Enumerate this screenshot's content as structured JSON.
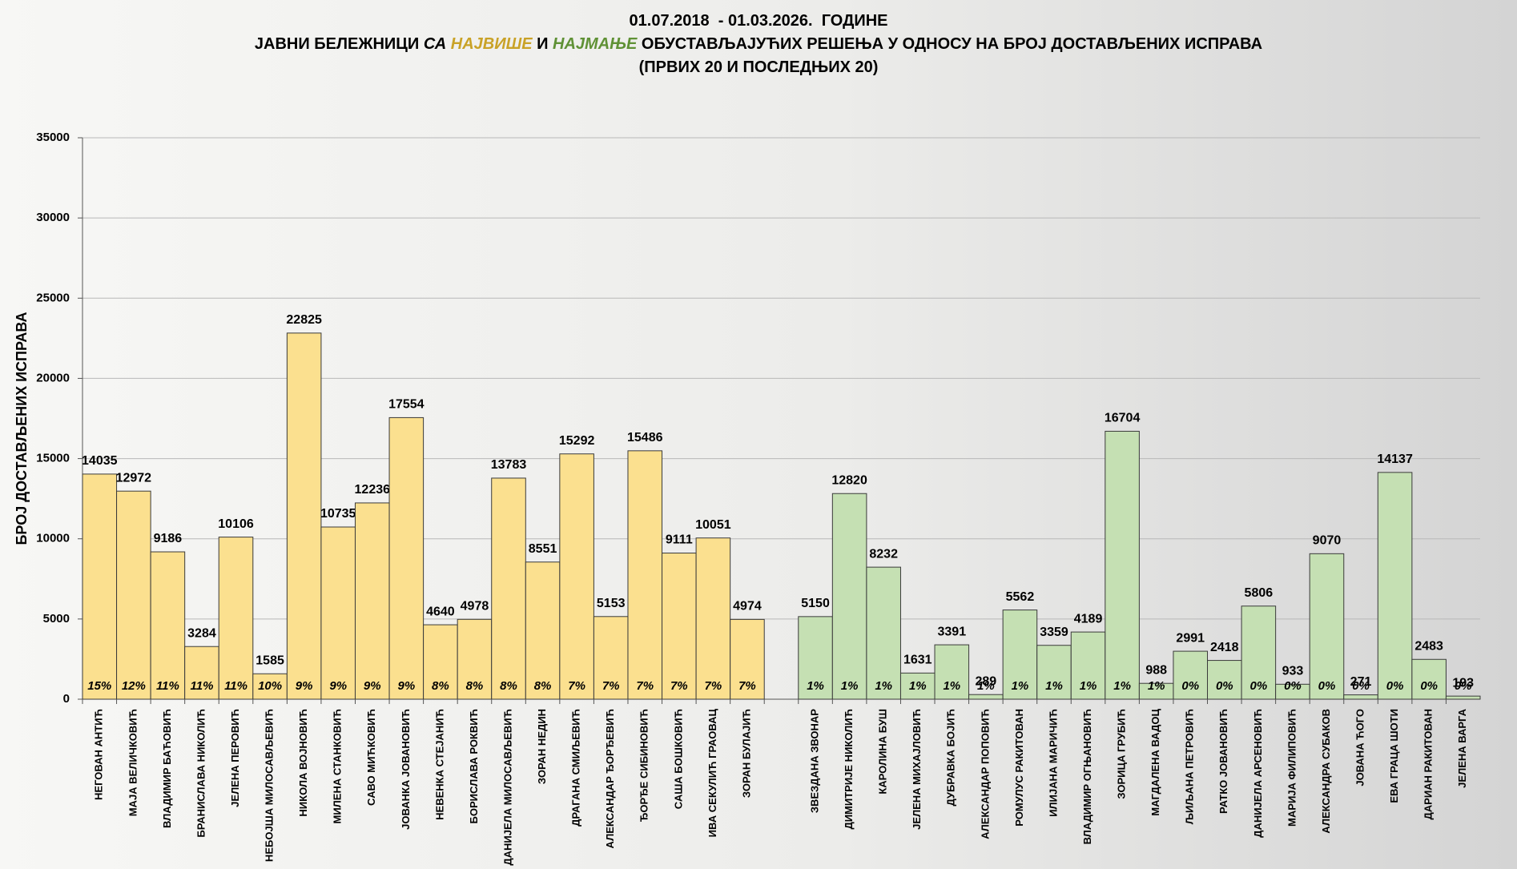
{
  "chart_data": {
    "type": "bar",
    "title_lines": [
      [
        {
          "text": "01.07.2018  - 01.03.2026.  ГОДИНЕ"
        }
      ],
      [
        {
          "text": "ЈАВНИ БЕЛЕЖНИЦИ "
        },
        {
          "text": "СА ",
          "italic": true
        },
        {
          "text": "НАЈВИШЕ",
          "italic": true,
          "color": "#c9a227"
        },
        {
          "text": " И "
        },
        {
          "text": "НАЈМАЊЕ",
          "italic": true,
          "color": "#5f9135"
        },
        {
          "text": " ОБУСТАВЉАЈУЋИХ РЕШЕЊА У ОДНОСУ НА БРОЈ ДОСТАВЉЕНИХ ИСПРАВА"
        }
      ],
      [
        {
          "text": "(ПРВИХ 20 И ПОСЛЕДЊИХ 20)"
        }
      ]
    ],
    "y_label": "БРОЈ ДОСТАВЉЕНИХ ИСПРАВА",
    "categories": [
      "НЕГОВАН АНТИЋ",
      "МАЈА ВЕЛИЧКОВИЋ",
      "ВЛАДИМИР БАЋОВИЋ",
      "БРАНИСЛАВА  НИКОЛИЋ",
      "ЈЕЛЕНА ПЕРОВИЋ",
      "НЕБОЈША МИЛОСАВЉЕВИЋ",
      "НИКОЛА ВОЈНОВИЋ",
      "МИЛЕНА СТАНКОВИЋ",
      "САВО МИЋКОВИЋ",
      "ЈОВАНКА ЈОВАНОВИЋ",
      "НЕВЕНКА СТЕЈАНИЋ",
      "БОРИСЛАВА  РОКВИЋ",
      "ДАНИЈЕЛА  МИЛОСАВЉЕВИЋ",
      "ЗОРАН НЕДИН",
      "ДРАГАНА СМИЉЕВИЋ",
      "АЛЕКСАНДАР  ЂОРЂЕВИЋ",
      "ЂОРЂЕ СИБИНОВИЋ",
      "САША БОШКОВИЋ",
      "ИВА СЕКУЛИЋ  ГРАОВАЦ",
      "ЗОРАН БУЛАЈИЋ",
      null,
      "ЗВЕЗДАНА ЗВОНАР",
      "ДИМИТРИЈЕ НИКОЛИЋ",
      "КАРОЛИНА  БУШ",
      "ЈЕЛЕНА МИХАЈЛОВИЋ",
      "ДУБРАВКА  БОЈИЋ",
      "АЛЕКСАНДАР  ПОПОВИЋ",
      "РОМУЛУС РАКИТОВАН",
      "ИЛИЈАНА  МАРИЧИЋ",
      "ВЛАДИМИР  ОГЊАНОВИЋ",
      "ЗОРИЦА  ГРУБИЋ",
      "МАГДАЛЕНА  ВАДОЦ",
      "ЉИЉАНА  ПЕТРОВИЋ",
      "РАТКО  ЈОВАНОВИЋ",
      "ДАНИЈЕЛА  АРСЕНОВИЋ",
      "МАРИЈА  ФИЛИПОВИЋ",
      "АЛЕКСАНДРА  СУБАКОВ",
      "ЈОВАНА  ЋОГО",
      "ЕВА ГРАЦА ШОТИ",
      "ДАРИАН  РАКИТОВАН",
      "ЈЕЛЕНА  ВАРГА"
    ],
    "series": [
      {
        "color": "#fbe08f",
        "values": [
          14035,
          12972,
          9186,
          3284,
          10106,
          1585,
          22825,
          10735,
          12236,
          17554,
          4640,
          4978,
          13783,
          8551,
          15292,
          5153,
          15486,
          9111,
          10051,
          4974,
          null,
          null,
          null,
          null,
          null,
          null,
          null,
          null,
          null,
          null,
          null,
          null,
          null,
          null,
          null,
          null,
          null,
          null,
          null,
          null,
          null
        ]
      },
      {
        "color": "#c5e0b3",
        "values": [
          null,
          null,
          null,
          null,
          null,
          null,
          null,
          null,
          null,
          null,
          null,
          null,
          null,
          null,
          null,
          null,
          null,
          null,
          null,
          null,
          null,
          5150,
          12820,
          8232,
          1631,
          3391,
          289,
          5562,
          3359,
          4189,
          16704,
          988,
          2991,
          2418,
          5806,
          933,
          9070,
          271,
          14137,
          2483,
          193
        ]
      }
    ],
    "share_labels": [
      "15%",
      "12%",
      "11%",
      "11%",
      "11%",
      "10%",
      "9%",
      "9%",
      "9%",
      "9%",
      "8%",
      "8%",
      "8%",
      "8%",
      "7%",
      "7%",
      "7%",
      "7%",
      "7%",
      "7%",
      null,
      "1%",
      "1%",
      "1%",
      "1%",
      "1%",
      "1%",
      "1%",
      "1%",
      "1%",
      "1%",
      "1%",
      "0%",
      "0%",
      "0%",
      "0%",
      "0%",
      "0%",
      "0%",
      "0%",
      "0%"
    ],
    "ylim": [
      0,
      35000
    ],
    "yticks": [
      0,
      5000,
      10000,
      15000,
      20000,
      25000,
      30000,
      35000
    ],
    "grid": true
  }
}
